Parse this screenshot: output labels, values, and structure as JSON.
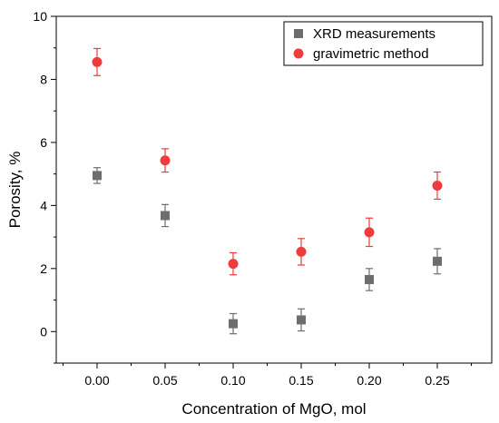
{
  "chart_data": {
    "type": "scatter",
    "xlabel": "Concentration of MgO, mol",
    "ylabel": "Porosity, %",
    "xlim": [
      -0.03,
      0.29
    ],
    "ylim": [
      -1,
      10
    ],
    "xticks": [
      "0.00",
      "0.05",
      "0.10",
      "0.15",
      "0.20",
      "0.25"
    ],
    "yticks": [
      "0",
      "2",
      "4",
      "6",
      "8",
      "10"
    ],
    "grid": false,
    "legend_position": "top-right",
    "series": [
      {
        "name": "XRD measurements",
        "marker": "square",
        "color": "#6d6d6d",
        "x": [
          0.0,
          0.05,
          0.1,
          0.15,
          0.2,
          0.25
        ],
        "y": [
          4.95,
          3.68,
          0.25,
          0.37,
          1.65,
          2.23
        ],
        "error": [
          0.25,
          0.35,
          0.32,
          0.35,
          0.35,
          0.4
        ]
      },
      {
        "name": "gravimetric method",
        "marker": "circle",
        "color": "#ef3b3b",
        "x": [
          0.0,
          0.05,
          0.1,
          0.15,
          0.2,
          0.25
        ],
        "y": [
          8.55,
          5.43,
          2.15,
          2.53,
          3.15,
          4.63
        ],
        "error": [
          0.43,
          0.37,
          0.35,
          0.42,
          0.45,
          0.43
        ]
      }
    ]
  }
}
